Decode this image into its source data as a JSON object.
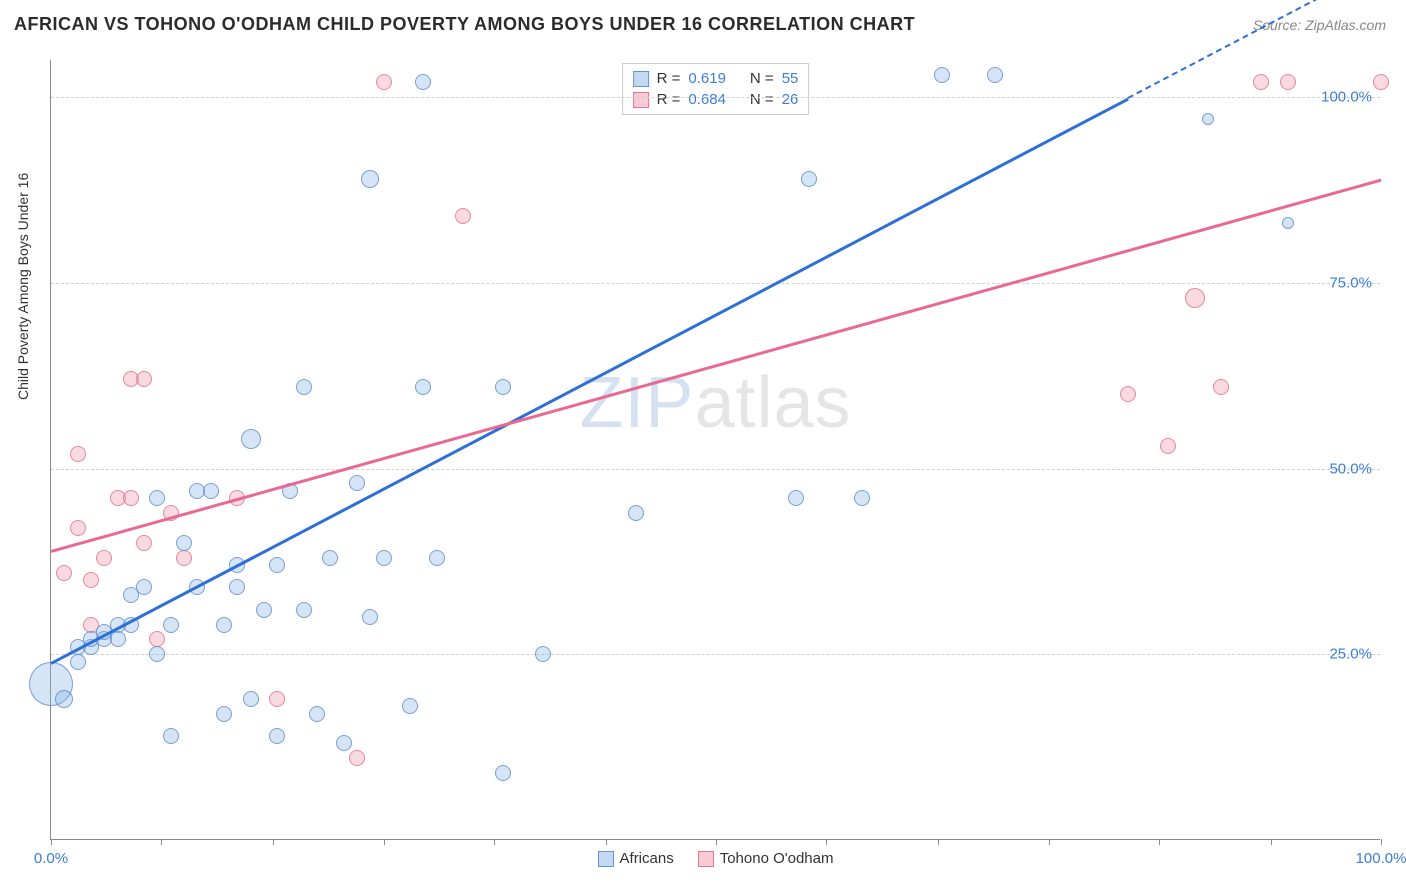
{
  "title": "AFRICAN VS TOHONO O'ODHAM CHILD POVERTY AMONG BOYS UNDER 16 CORRELATION CHART",
  "source": "Source: ZipAtlas.com",
  "ylabel": "Child Poverty Among Boys Under 16",
  "watermark_zip": "ZIP",
  "watermark_atlas": "atlas",
  "chart": {
    "type": "scatter",
    "xlim": [
      0,
      100
    ],
    "ylim": [
      0,
      105
    ],
    "x_tick_positions": [
      0,
      8.3,
      16.7,
      25,
      33.3,
      41.7,
      50,
      58.3,
      66.7,
      75,
      83.3,
      91.7,
      100
    ],
    "x_tick_labels": {
      "0": "0.0%",
      "100": "100.0%"
    },
    "y_gridlines": [
      25,
      50,
      75,
      100
    ],
    "y_tick_labels": {
      "25": "25.0%",
      "50": "50.0%",
      "75": "75.0%",
      "100": "100.0%"
    },
    "background_color": "#ffffff",
    "grid_color": "#d0d0d0",
    "axis_color": "#888888",
    "tick_label_color": "#3b7dd8",
    "series": {
      "africans": {
        "label": "Africans",
        "color_fill": "rgba(135,180,230,0.35)",
        "color_stroke": "rgba(80,130,200,0.7)",
        "R": "0.619",
        "N": "55",
        "trend": {
          "x1": 0,
          "y1": 24,
          "x2": 81,
          "y2": 100,
          "extend_x2": 100,
          "color": "#2e6fd6"
        },
        "points": [
          {
            "x": 0,
            "y": 21,
            "r": 22
          },
          {
            "x": 1,
            "y": 19,
            "r": 9
          },
          {
            "x": 2,
            "y": 24,
            "r": 8
          },
          {
            "x": 2,
            "y": 26,
            "r": 8
          },
          {
            "x": 3,
            "y": 26,
            "r": 8
          },
          {
            "x": 3,
            "y": 27,
            "r": 8
          },
          {
            "x": 4,
            "y": 27,
            "r": 8
          },
          {
            "x": 4,
            "y": 28,
            "r": 8
          },
          {
            "x": 5,
            "y": 29,
            "r": 8
          },
          {
            "x": 5,
            "y": 27,
            "r": 8
          },
          {
            "x": 6,
            "y": 29,
            "r": 8
          },
          {
            "x": 6,
            "y": 33,
            "r": 8
          },
          {
            "x": 7,
            "y": 34,
            "r": 8
          },
          {
            "x": 8,
            "y": 25,
            "r": 8
          },
          {
            "x": 8,
            "y": 46,
            "r": 8
          },
          {
            "x": 9,
            "y": 14,
            "r": 8
          },
          {
            "x": 9,
            "y": 29,
            "r": 8
          },
          {
            "x": 10,
            "y": 40,
            "r": 8
          },
          {
            "x": 11,
            "y": 34,
            "r": 8
          },
          {
            "x": 11,
            "y": 47,
            "r": 8
          },
          {
            "x": 12,
            "y": 47,
            "r": 8
          },
          {
            "x": 13,
            "y": 17,
            "r": 8
          },
          {
            "x": 13,
            "y": 29,
            "r": 8
          },
          {
            "x": 14,
            "y": 34,
            "r": 8
          },
          {
            "x": 14,
            "y": 37,
            "r": 8
          },
          {
            "x": 15,
            "y": 19,
            "r": 8
          },
          {
            "x": 15,
            "y": 54,
            "r": 10
          },
          {
            "x": 16,
            "y": 31,
            "r": 8
          },
          {
            "x": 17,
            "y": 14,
            "r": 8
          },
          {
            "x": 17,
            "y": 37,
            "r": 8
          },
          {
            "x": 18,
            "y": 47,
            "r": 8
          },
          {
            "x": 19,
            "y": 31,
            "r": 8
          },
          {
            "x": 19,
            "y": 61,
            "r": 8
          },
          {
            "x": 20,
            "y": 17,
            "r": 8
          },
          {
            "x": 21,
            "y": 38,
            "r": 8
          },
          {
            "x": 22,
            "y": 13,
            "r": 8
          },
          {
            "x": 23,
            "y": 48,
            "r": 8
          },
          {
            "x": 24,
            "y": 30,
            "r": 8
          },
          {
            "x": 24,
            "y": 89,
            "r": 9
          },
          {
            "x": 25,
            "y": 38,
            "r": 8
          },
          {
            "x": 27,
            "y": 18,
            "r": 8
          },
          {
            "x": 28,
            "y": 61,
            "r": 8
          },
          {
            "x": 28,
            "y": 102,
            "r": 8
          },
          {
            "x": 29,
            "y": 38,
            "r": 8
          },
          {
            "x": 34,
            "y": 9,
            "r": 8
          },
          {
            "x": 34,
            "y": 61,
            "r": 8
          },
          {
            "x": 37,
            "y": 25,
            "r": 8
          },
          {
            "x": 44,
            "y": 44,
            "r": 8
          },
          {
            "x": 56,
            "y": 46,
            "r": 8
          },
          {
            "x": 57,
            "y": 89,
            "r": 8
          },
          {
            "x": 61,
            "y": 46,
            "r": 8
          },
          {
            "x": 67,
            "y": 103,
            "r": 8
          },
          {
            "x": 71,
            "y": 103,
            "r": 8
          },
          {
            "x": 87,
            "y": 97,
            "r": 6
          },
          {
            "x": 93,
            "y": 83,
            "r": 6
          }
        ]
      },
      "tohono": {
        "label": "Tohono O'odham",
        "color_fill": "rgba(240,150,170,0.35)",
        "color_stroke": "rgba(220,100,130,0.7)",
        "R": "0.684",
        "N": "26",
        "trend": {
          "x1": 0,
          "y1": 39,
          "x2": 100,
          "y2": 89,
          "color": "#e86a92"
        },
        "points": [
          {
            "x": 1,
            "y": 36,
            "r": 8
          },
          {
            "x": 2,
            "y": 42,
            "r": 8
          },
          {
            "x": 2,
            "y": 52,
            "r": 8
          },
          {
            "x": 3,
            "y": 29,
            "r": 8
          },
          {
            "x": 3,
            "y": 35,
            "r": 8
          },
          {
            "x": 4,
            "y": 38,
            "r": 8
          },
          {
            "x": 5,
            "y": 46,
            "r": 8
          },
          {
            "x": 6,
            "y": 46,
            "r": 8
          },
          {
            "x": 6,
            "y": 62,
            "r": 8
          },
          {
            "x": 7,
            "y": 40,
            "r": 8
          },
          {
            "x": 7,
            "y": 62,
            "r": 8
          },
          {
            "x": 8,
            "y": 27,
            "r": 8
          },
          {
            "x": 9,
            "y": 44,
            "r": 8
          },
          {
            "x": 10,
            "y": 38,
            "r": 8
          },
          {
            "x": 14,
            "y": 46,
            "r": 8
          },
          {
            "x": 17,
            "y": 19,
            "r": 8
          },
          {
            "x": 23,
            "y": 11,
            "r": 8
          },
          {
            "x": 25,
            "y": 102,
            "r": 8
          },
          {
            "x": 31,
            "y": 84,
            "r": 8
          },
          {
            "x": 81,
            "y": 60,
            "r": 8
          },
          {
            "x": 84,
            "y": 53,
            "r": 8
          },
          {
            "x": 86,
            "y": 73,
            "r": 10
          },
          {
            "x": 88,
            "y": 61,
            "r": 8
          },
          {
            "x": 91,
            "y": 102,
            "r": 8
          },
          {
            "x": 93,
            "y": 102,
            "r": 8
          },
          {
            "x": 100,
            "y": 102,
            "r": 8
          }
        ]
      }
    }
  },
  "stats_box": {
    "rows": [
      {
        "series": "africans",
        "R_label": "R =",
        "R": "0.619",
        "N_label": "N =",
        "N": "55"
      },
      {
        "series": "tohono",
        "R_label": "R =",
        "R": "0.684",
        "N_label": "N =",
        "N": "26"
      }
    ]
  },
  "legend": [
    {
      "series": "africans",
      "label": "Africans"
    },
    {
      "series": "tohono",
      "label": "Tohono O'odham"
    }
  ]
}
